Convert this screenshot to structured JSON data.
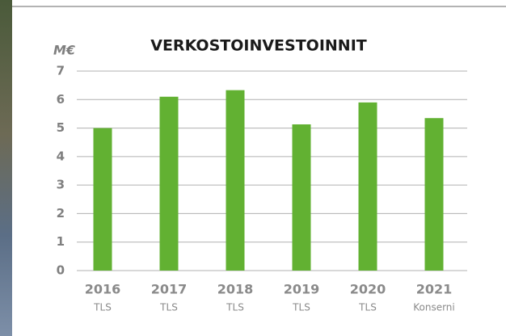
{
  "chart_data": {
    "type": "bar",
    "title": "VERKOSTOINVESTOINNIT",
    "y_unit": "M€",
    "categories": [
      "2016",
      "2017",
      "2018",
      "2019",
      "2020",
      "2021"
    ],
    "category_sublabels": [
      "TLS",
      "TLS",
      "TLS",
      "TLS",
      "TLS",
      "Konserni"
    ],
    "values": [
      5.0,
      6.1,
      6.33,
      5.13,
      5.9,
      5.35
    ],
    "color": "#62b132",
    "ylim": [
      0,
      7
    ],
    "yticks": [
      0,
      1,
      2,
      3,
      4,
      5,
      6,
      7
    ],
    "grid": true
  }
}
